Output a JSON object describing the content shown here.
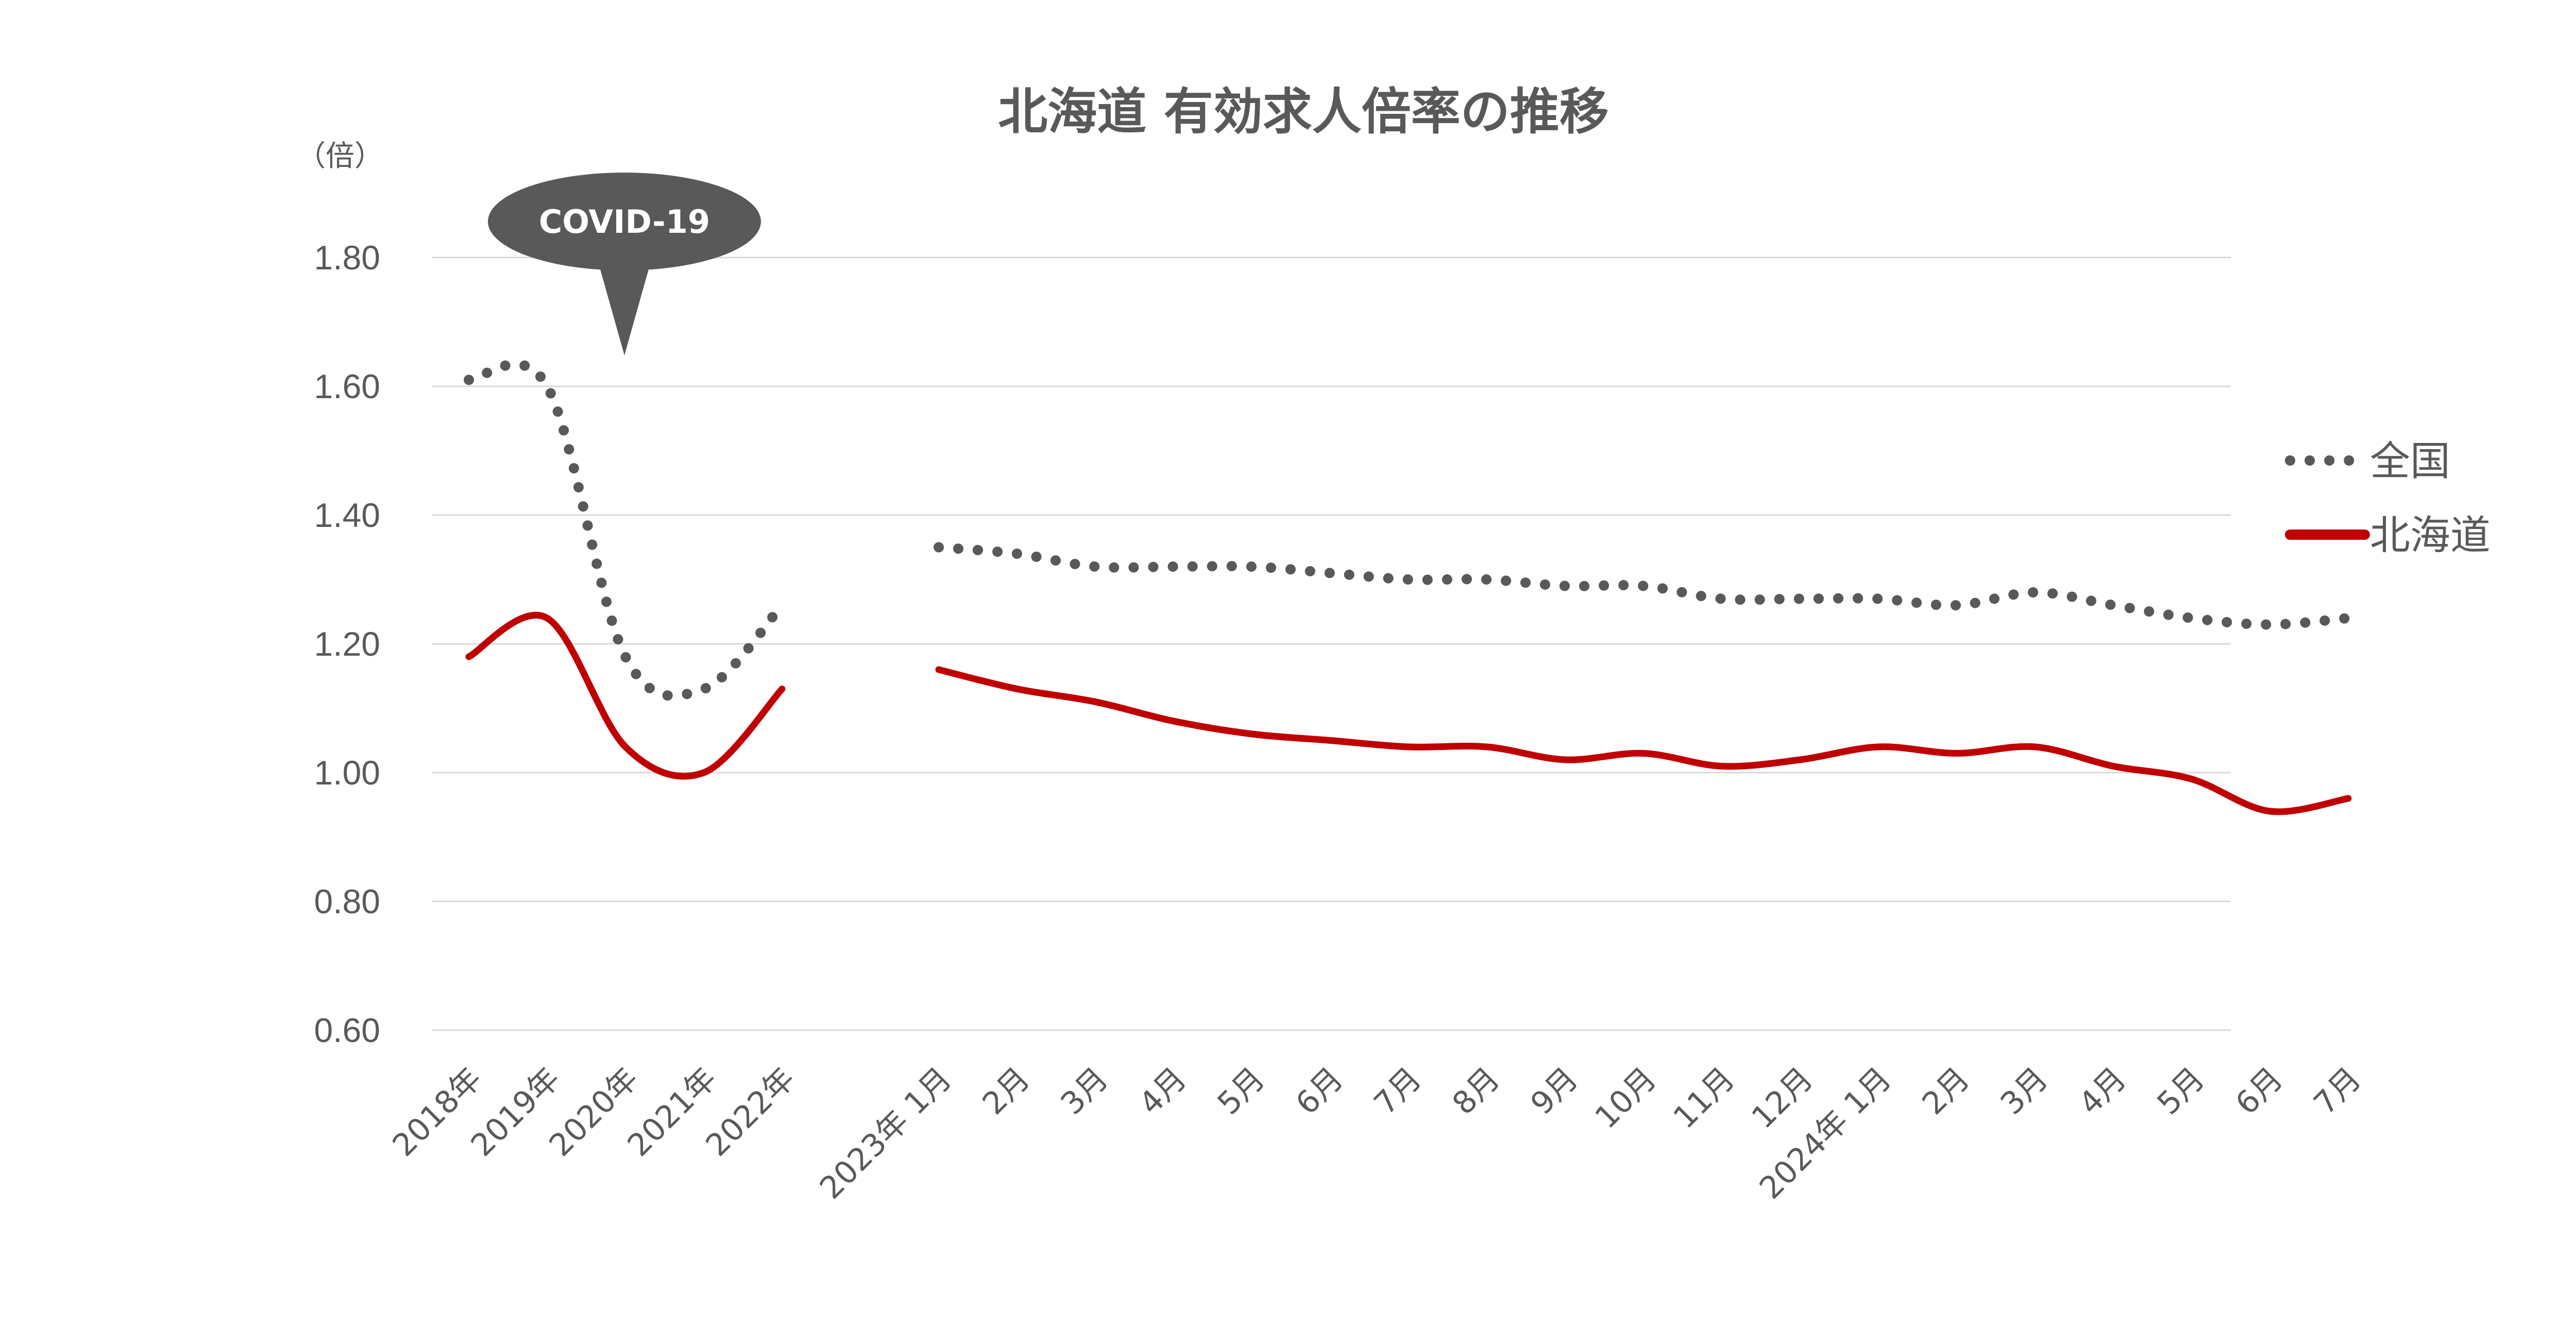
{
  "chart_data": {
    "type": "line",
    "title": "北海道 有効求人倍率の推移",
    "ylabel": "（倍）",
    "ylim": [
      0.6,
      1.8
    ],
    "yticks": [
      "0.60",
      "0.80",
      "1.00",
      "1.20",
      "1.40",
      "1.60",
      "1.80"
    ],
    "yticks_values": [
      0.6,
      0.8,
      1.0,
      1.2,
      1.4,
      1.6,
      1.8
    ],
    "grid": true,
    "legend_position": "right",
    "categories": [
      "2018年",
      "2019年",
      "2020年",
      "2021年",
      "2022年",
      "2023年 1月",
      "2月",
      "3月",
      "4月",
      "5月",
      "6月",
      "7月",
      "8月",
      "9月",
      "10月",
      "11月",
      "12月",
      "2024年 1月",
      "2月",
      "3月",
      "4月",
      "5月",
      "6月",
      "7月"
    ],
    "category_slots": [
      0,
      1,
      2,
      3,
      4,
      6,
      7,
      8,
      9,
      10,
      11,
      12,
      13,
      14,
      15,
      16,
      17,
      18,
      19,
      20,
      21,
      22,
      23,
      24
    ],
    "segments": [
      [
        0,
        4
      ],
      [
        5,
        23
      ]
    ],
    "series": [
      {
        "name": "全国",
        "style": "dotted",
        "color": "#595959",
        "values": [
          1.61,
          1.6,
          1.18,
          1.13,
          1.26,
          1.35,
          1.34,
          1.32,
          1.32,
          1.32,
          1.31,
          1.3,
          1.3,
          1.29,
          1.29,
          1.27,
          1.27,
          1.27,
          1.26,
          1.28,
          1.26,
          1.24,
          1.23,
          1.24
        ]
      },
      {
        "name": "北海道",
        "style": "solid",
        "color": "#c00000",
        "values": [
          1.18,
          1.24,
          1.04,
          1.0,
          1.13,
          1.16,
          1.13,
          1.11,
          1.08,
          1.06,
          1.05,
          1.04,
          1.04,
          1.02,
          1.03,
          1.01,
          1.02,
          1.04,
          1.03,
          1.04,
          1.01,
          0.99,
          0.94,
          0.96
        ]
      }
    ],
    "annotation": {
      "text": "COVID-19",
      "fill": "#595959"
    }
  }
}
